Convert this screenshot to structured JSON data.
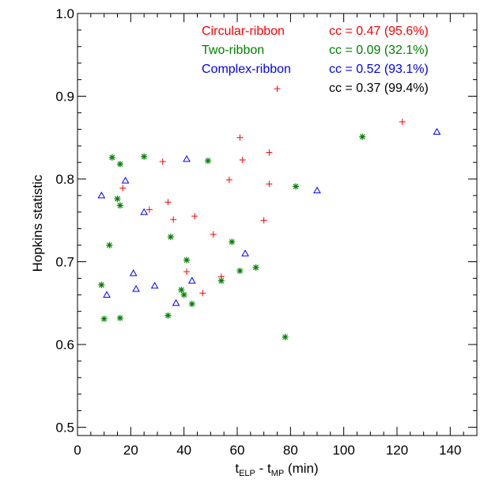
{
  "chart_data": {
    "type": "scatter",
    "xlabel": {
      "base": "t",
      "sub1": "ELP",
      "mid": " - t",
      "sub2": "MP",
      "suffix": " (min)"
    },
    "ylabel": "Hopkins statistic",
    "xlim": [
      0,
      150
    ],
    "ylim": [
      0.49,
      1.0
    ],
    "x_ticks": [
      0,
      20,
      40,
      60,
      80,
      100,
      120,
      140
    ],
    "x_tick_labels": [
      "0",
      "20",
      "40",
      "60",
      "80",
      "100",
      "120",
      "140"
    ],
    "y_ticks": [
      0.5,
      0.6,
      0.7,
      0.8,
      0.9,
      1.0
    ],
    "y_tick_labels": [
      "0.5",
      "0.6",
      "0.7",
      "0.8",
      "0.9",
      "1.0"
    ],
    "grid": false,
    "legend_position": "top-right",
    "legend": [
      {
        "label": "Circular-ribbon",
        "cc": "cc = 0.47 (95.6%)",
        "color": "#ff0000"
      },
      {
        "label": "Two-ribbon",
        "cc": "cc = 0.09 (32.1%)",
        "color": "#008000"
      },
      {
        "label": "Complex-ribbon",
        "cc": "cc = 0.52 (93.1%)",
        "color": "#0000ff"
      },
      {
        "label": "",
        "cc": "cc = 0.37 (99.4%)",
        "color": "#000000"
      }
    ],
    "series": [
      {
        "name": "Circular-ribbon",
        "color": "#ff0000",
        "marker": "plus",
        "points": [
          [
            17,
            0.789
          ],
          [
            27,
            0.763
          ],
          [
            32,
            0.821
          ],
          [
            34,
            0.772
          ],
          [
            36,
            0.751
          ],
          [
            41,
            0.688
          ],
          [
            44,
            0.755
          ],
          [
            47,
            0.662
          ],
          [
            51,
            0.733
          ],
          [
            54,
            0.682
          ],
          [
            57,
            0.799
          ],
          [
            61,
            0.85
          ],
          [
            62,
            0.823
          ],
          [
            72,
            0.794
          ],
          [
            72,
            0.832
          ],
          [
            75,
            0.909
          ],
          [
            70,
            0.75
          ],
          [
            122,
            0.869
          ]
        ]
      },
      {
        "name": "Two-ribbon",
        "color": "#008000",
        "marker": "asterisk",
        "points": [
          [
            9,
            0.672
          ],
          [
            10,
            0.631
          ],
          [
            12,
            0.72
          ],
          [
            13,
            0.826
          ],
          [
            15,
            0.776
          ],
          [
            16,
            0.768
          ],
          [
            16,
            0.818
          ],
          [
            16,
            0.632
          ],
          [
            25,
            0.827
          ],
          [
            34,
            0.635
          ],
          [
            35,
            0.73
          ],
          [
            39,
            0.666
          ],
          [
            40,
            0.66
          ],
          [
            41,
            0.702
          ],
          [
            43,
            0.649
          ],
          [
            49,
            0.822
          ],
          [
            54,
            0.677
          ],
          [
            58,
            0.724
          ],
          [
            61,
            0.689
          ],
          [
            67,
            0.693
          ],
          [
            78,
            0.609
          ],
          [
            82,
            0.791
          ],
          [
            107,
            0.851
          ]
        ]
      },
      {
        "name": "Complex-ribbon",
        "color": "#0000ff",
        "marker": "triangle",
        "points": [
          [
            9,
            0.78
          ],
          [
            11,
            0.66
          ],
          [
            18,
            0.798
          ],
          [
            21,
            0.686
          ],
          [
            22,
            0.667
          ],
          [
            25,
            0.76
          ],
          [
            29,
            0.671
          ],
          [
            37,
            0.65
          ],
          [
            41,
            0.824
          ],
          [
            43,
            0.677
          ],
          [
            63,
            0.71
          ],
          [
            90,
            0.786
          ],
          [
            135,
            0.857
          ]
        ]
      }
    ]
  }
}
